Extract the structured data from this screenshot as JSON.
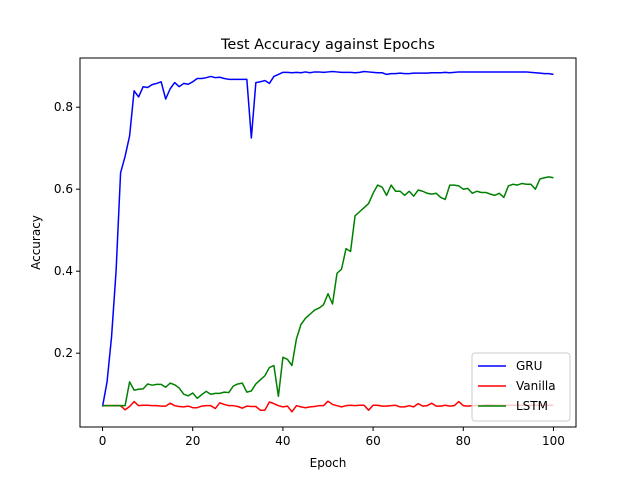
{
  "chart_data": {
    "type": "line",
    "title": "Test Accuracy against Epochs",
    "xlabel": "Epoch",
    "ylabel": "Accuracy",
    "xlim": [
      -5,
      105
    ],
    "ylim": [
      0.02,
      0.92
    ],
    "xticks": [
      0,
      20,
      40,
      60,
      80,
      100
    ],
    "yticks": [
      0.2,
      0.4,
      0.6,
      0.8
    ],
    "xtick_labels": [
      "0",
      "20",
      "40",
      "60",
      "80",
      "100"
    ],
    "ytick_labels": [
      "0.2",
      "0.4",
      "0.6",
      "0.8"
    ],
    "grid": false,
    "legend_position": "bottom-right",
    "series": [
      {
        "name": "GRU",
        "color": "#0000ff",
        "x": [
          0,
          1,
          2,
          3,
          4,
          5,
          6,
          7,
          8,
          9,
          10,
          11,
          12,
          13,
          14,
          15,
          16,
          17,
          18,
          19,
          20,
          21,
          22,
          23,
          24,
          25,
          26,
          27,
          28,
          29,
          30,
          31,
          32,
          33,
          34,
          35,
          36,
          37,
          38,
          39,
          40,
          41,
          42,
          43,
          44,
          45,
          46,
          47,
          48,
          49,
          50,
          51,
          52,
          53,
          54,
          55,
          56,
          57,
          58,
          59,
          60,
          61,
          62,
          63,
          64,
          65,
          66,
          67,
          68,
          69,
          70,
          71,
          72,
          73,
          74,
          75,
          76,
          77,
          78,
          79,
          80,
          81,
          82,
          83,
          84,
          85,
          86,
          87,
          88,
          89,
          90,
          91,
          92,
          93,
          94,
          95,
          96,
          97,
          98,
          99,
          100
        ],
        "values": [
          0.07,
          0.13,
          0.24,
          0.4,
          0.64,
          0.68,
          0.73,
          0.84,
          0.825,
          0.85,
          0.848,
          0.855,
          0.858,
          0.862,
          0.82,
          0.845,
          0.86,
          0.85,
          0.858,
          0.856,
          0.862,
          0.87,
          0.87,
          0.872,
          0.875,
          0.872,
          0.873,
          0.87,
          0.868,
          0.868,
          0.868,
          0.868,
          0.868,
          0.725,
          0.86,
          0.862,
          0.865,
          0.858,
          0.875,
          0.88,
          0.885,
          0.885,
          0.884,
          0.885,
          0.884,
          0.886,
          0.884,
          0.886,
          0.886,
          0.885,
          0.886,
          0.887,
          0.886,
          0.885,
          0.885,
          0.885,
          0.884,
          0.885,
          0.887,
          0.886,
          0.885,
          0.884,
          0.884,
          0.88,
          0.882,
          0.882,
          0.883,
          0.882,
          0.882,
          0.883,
          0.883,
          0.883,
          0.883,
          0.884,
          0.884,
          0.884,
          0.885,
          0.884,
          0.885,
          0.886,
          0.886,
          0.886,
          0.886,
          0.886,
          0.886,
          0.886,
          0.886,
          0.886,
          0.886,
          0.886,
          0.886,
          0.886,
          0.886,
          0.886,
          0.886,
          0.885,
          0.884,
          0.883,
          0.882,
          0.882,
          0.88
        ]
      },
      {
        "name": "Vanilla",
        "color": "#ff0000",
        "x": [
          0,
          1,
          2,
          3,
          4,
          5,
          6,
          7,
          8,
          9,
          10,
          11,
          12,
          13,
          14,
          15,
          16,
          17,
          18,
          19,
          20,
          21,
          22,
          23,
          24,
          25,
          26,
          27,
          28,
          29,
          30,
          31,
          32,
          33,
          34,
          35,
          36,
          37,
          38,
          39,
          40,
          41,
          42,
          43,
          44,
          45,
          46,
          47,
          48,
          49,
          50,
          51,
          52,
          53,
          54,
          55,
          56,
          57,
          58,
          59,
          60,
          61,
          62,
          63,
          64,
          65,
          66,
          67,
          68,
          69,
          70,
          71,
          72,
          73,
          74,
          75,
          76,
          77,
          78,
          79,
          80,
          81,
          82,
          83,
          84,
          85,
          86,
          87,
          88,
          89,
          90,
          91,
          92,
          93,
          94,
          95,
          96,
          97,
          98,
          99,
          100
        ],
        "values": [
          0.072,
          0.072,
          0.072,
          0.072,
          0.072,
          0.062,
          0.07,
          0.082,
          0.072,
          0.073,
          0.073,
          0.072,
          0.072,
          0.071,
          0.071,
          0.078,
          0.072,
          0.07,
          0.069,
          0.071,
          0.067,
          0.067,
          0.071,
          0.072,
          0.072,
          0.065,
          0.079,
          0.075,
          0.072,
          0.072,
          0.07,
          0.066,
          0.071,
          0.07,
          0.07,
          0.061,
          0.061,
          0.081,
          0.077,
          0.072,
          0.069,
          0.071,
          0.057,
          0.072,
          0.069,
          0.067,
          0.069,
          0.07,
          0.072,
          0.072,
          0.083,
          0.075,
          0.072,
          0.069,
          0.072,
          0.073,
          0.072,
          0.073,
          0.073,
          0.061,
          0.073,
          0.073,
          0.071,
          0.071,
          0.072,
          0.073,
          0.069,
          0.069,
          0.072,
          0.069,
          0.077,
          0.071,
          0.072,
          0.078,
          0.071,
          0.071,
          0.073,
          0.071,
          0.072,
          0.082,
          0.072,
          0.071,
          0.072,
          0.073,
          0.072,
          0.074,
          0.074,
          0.073,
          0.073,
          0.073,
          0.073,
          0.073,
          0.073,
          0.073,
          0.073,
          0.073,
          0.073,
          0.073,
          0.073,
          0.073,
          0.073
        ]
      },
      {
        "name": "LSTM",
        "color": "#008000",
        "x": [
          0,
          1,
          2,
          3,
          4,
          5,
          6,
          7,
          8,
          9,
          10,
          11,
          12,
          13,
          14,
          15,
          16,
          17,
          18,
          19,
          20,
          21,
          22,
          23,
          24,
          25,
          26,
          27,
          28,
          29,
          30,
          31,
          32,
          33,
          34,
          35,
          36,
          37,
          38,
          39,
          40,
          41,
          42,
          43,
          44,
          45,
          46,
          47,
          48,
          49,
          50,
          51,
          52,
          53,
          54,
          55,
          56,
          57,
          58,
          59,
          60,
          61,
          62,
          63,
          64,
          65,
          66,
          67,
          68,
          69,
          70,
          71,
          72,
          73,
          74,
          75,
          76,
          77,
          78,
          79,
          80,
          81,
          82,
          83,
          84,
          85,
          86,
          87,
          88,
          89,
          90,
          91,
          92,
          93,
          94,
          95,
          96,
          97,
          98,
          99,
          100
        ],
        "values": [
          0.072,
          0.072,
          0.072,
          0.072,
          0.072,
          0.072,
          0.13,
          0.11,
          0.112,
          0.113,
          0.125,
          0.122,
          0.124,
          0.124,
          0.117,
          0.127,
          0.123,
          0.115,
          0.1,
          0.096,
          0.103,
          0.09,
          0.099,
          0.107,
          0.1,
          0.102,
          0.102,
          0.105,
          0.104,
          0.12,
          0.125,
          0.127,
          0.105,
          0.108,
          0.125,
          0.135,
          0.145,
          0.165,
          0.17,
          0.095,
          0.19,
          0.185,
          0.17,
          0.235,
          0.27,
          0.285,
          0.295,
          0.305,
          0.31,
          0.318,
          0.345,
          0.32,
          0.395,
          0.405,
          0.455,
          0.448,
          0.535,
          0.545,
          0.555,
          0.565,
          0.59,
          0.61,
          0.605,
          0.585,
          0.61,
          0.595,
          0.595,
          0.585,
          0.595,
          0.583,
          0.598,
          0.595,
          0.59,
          0.588,
          0.59,
          0.58,
          0.575,
          0.61,
          0.61,
          0.608,
          0.6,
          0.602,
          0.59,
          0.595,
          0.592,
          0.592,
          0.588,
          0.585,
          0.59,
          0.58,
          0.608,
          0.612,
          0.61,
          0.614,
          0.612,
          0.612,
          0.6,
          0.625,
          0.628,
          0.63,
          0.628
        ]
      }
    ]
  }
}
